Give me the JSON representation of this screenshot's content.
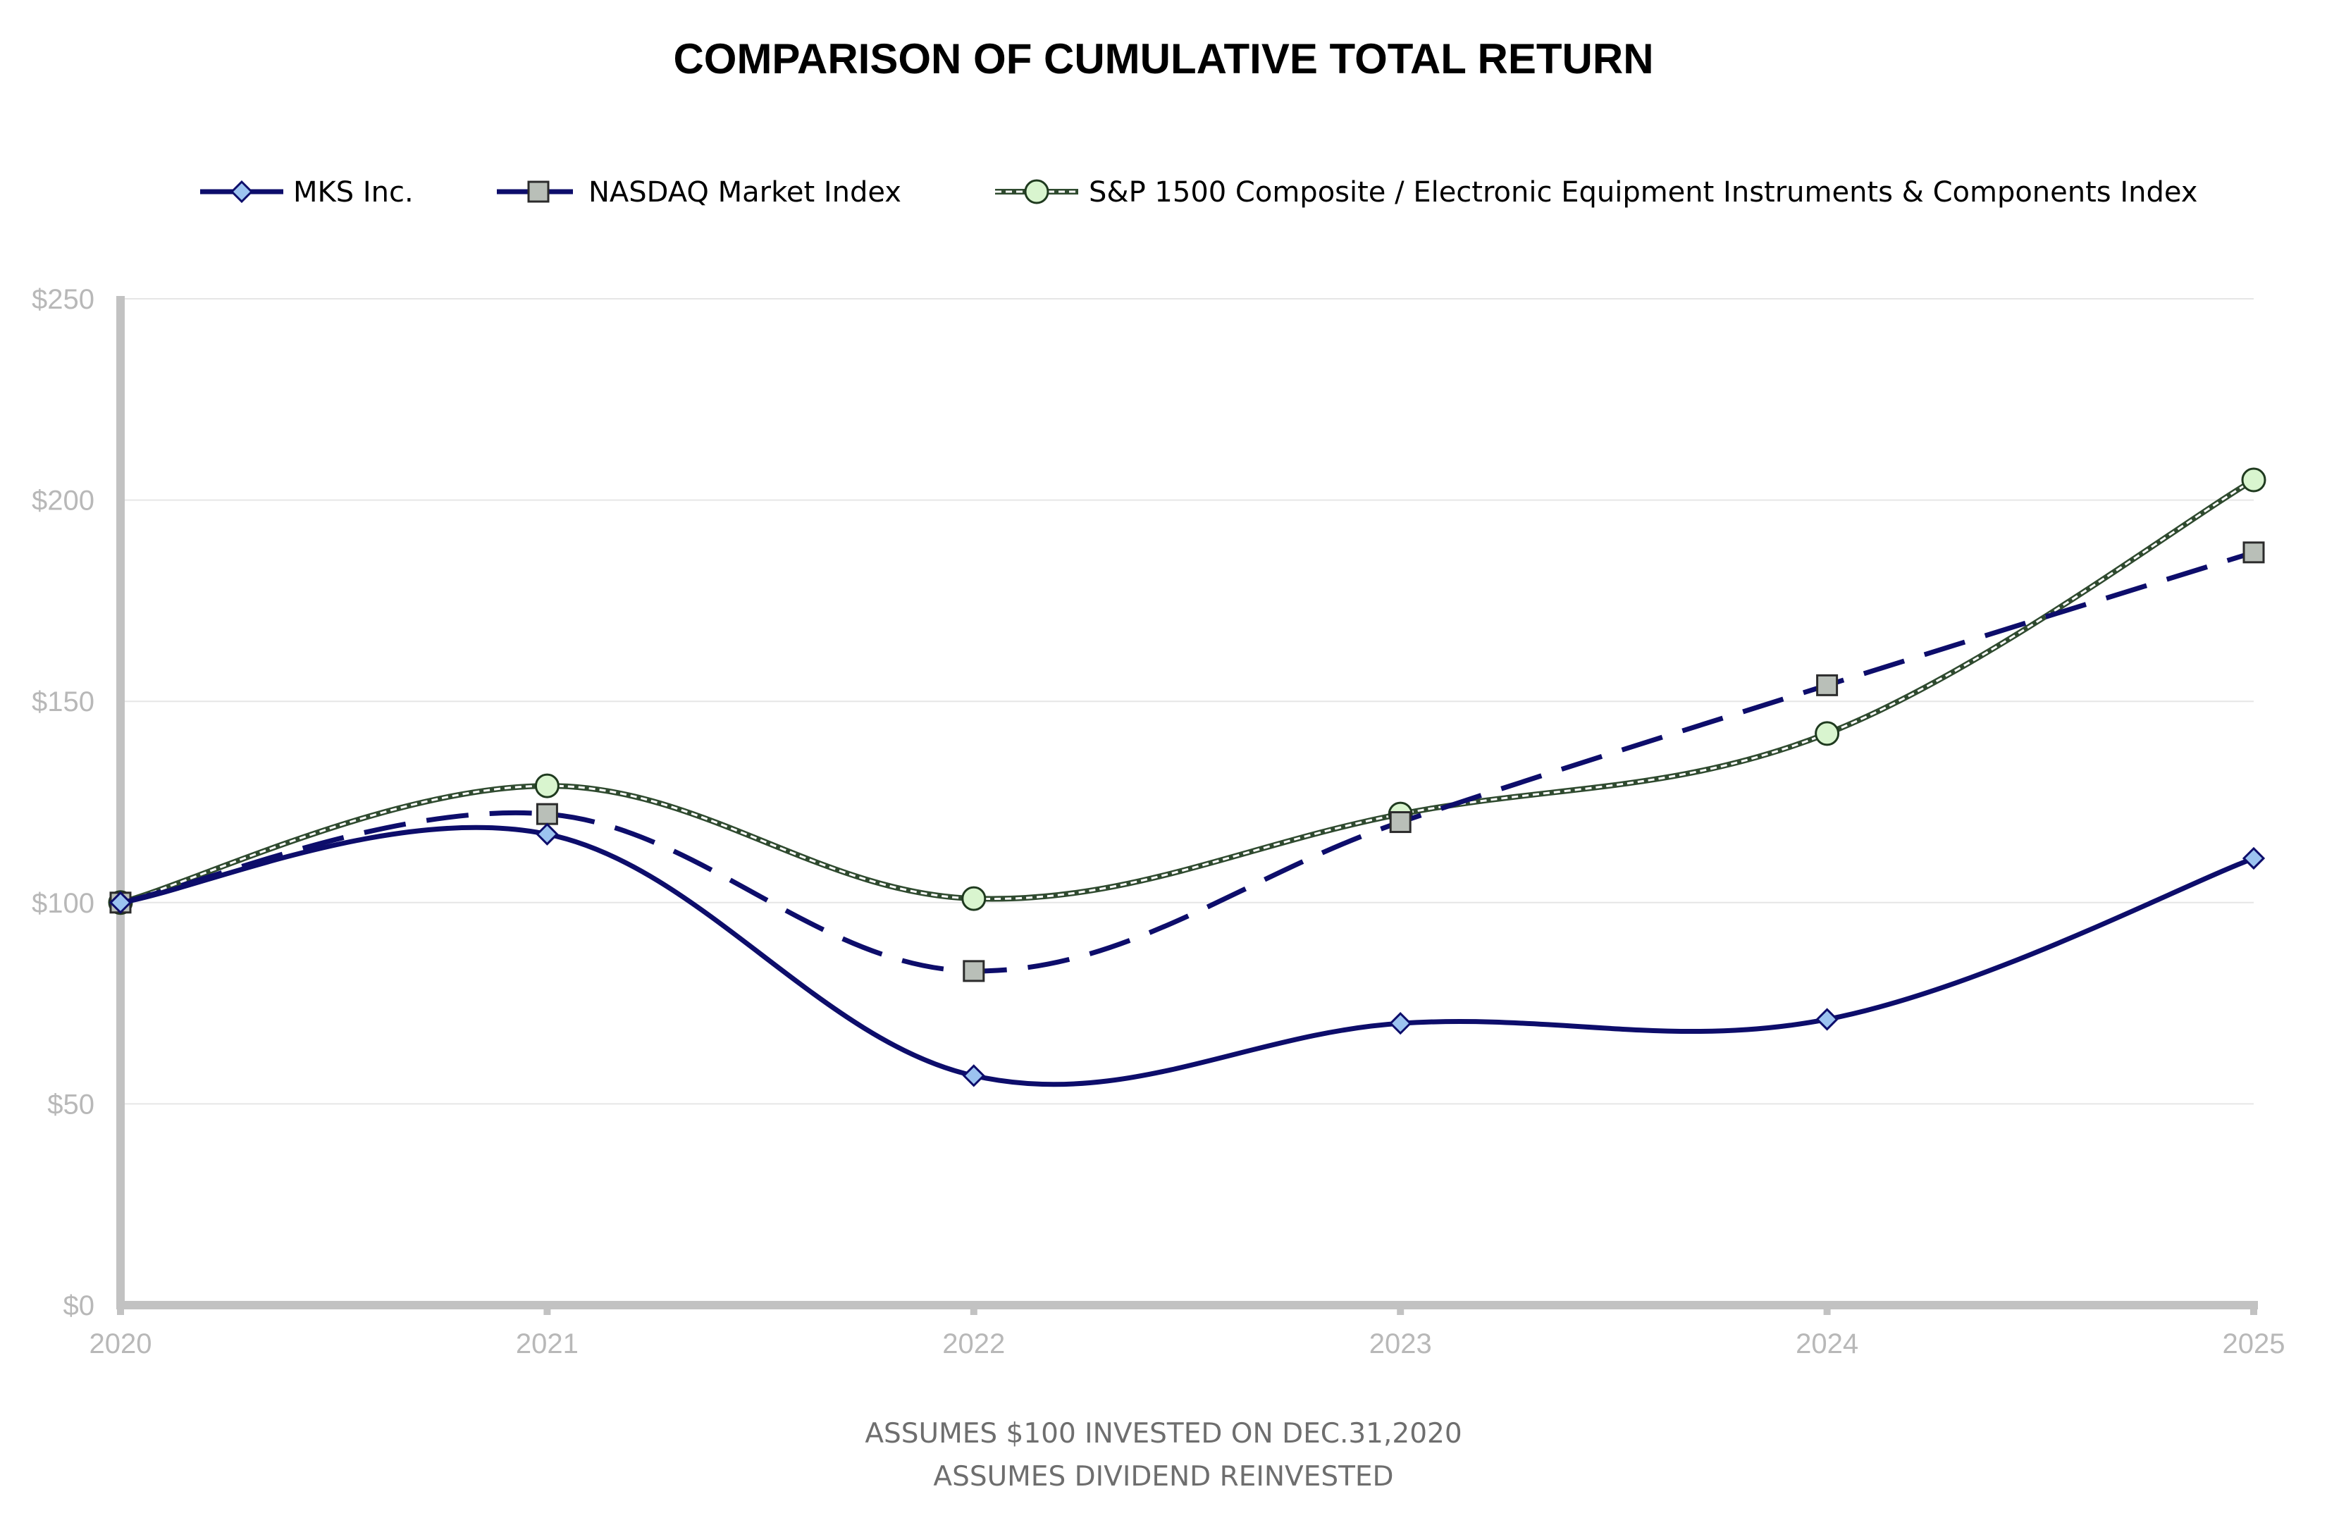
{
  "chart_data": {
    "type": "line",
    "title": "COMPARISON OF CUMULATIVE TOTAL RETURN",
    "categories": [
      "2020",
      "2021",
      "2022",
      "2023",
      "2024",
      "2025"
    ],
    "ylim": [
      0,
      250
    ],
    "yticks": [
      0,
      50,
      100,
      150,
      200,
      250
    ],
    "ytick_labels": [
      "$0",
      "$50",
      "$100",
      "$150",
      "$200",
      "$250"
    ],
    "xlabel": "",
    "ylabel": "",
    "grid": true,
    "legend_position": "top",
    "series": [
      {
        "name": "MKS Inc.",
        "values": [
          100,
          117,
          57,
          70,
          71,
          111
        ],
        "line_color": "#0d0d6b",
        "line_style": "solid",
        "marker": "diamond",
        "marker_fill": "#9cc3f0"
      },
      {
        "name": "NASDAQ Market Index",
        "values": [
          100,
          122,
          83,
          120,
          154,
          187
        ],
        "line_color": "#0d0d6b",
        "line_style": "dashed",
        "marker": "square",
        "marker_fill": "#b9bfb8"
      },
      {
        "name": "S&P 1500 Composite / Electronic Equipment Instruments & Components Index",
        "values": [
          100,
          129,
          101,
          122,
          142,
          205
        ],
        "line_color": "#2f4a2f",
        "line_style": "dotted",
        "marker": "circle",
        "marker_fill": "#d9f5cf"
      }
    ],
    "footnotes": [
      "ASSUMES $100 INVESTED ON DEC.31,2020",
      "ASSUMES DIVIDEND REINVESTED"
    ]
  }
}
